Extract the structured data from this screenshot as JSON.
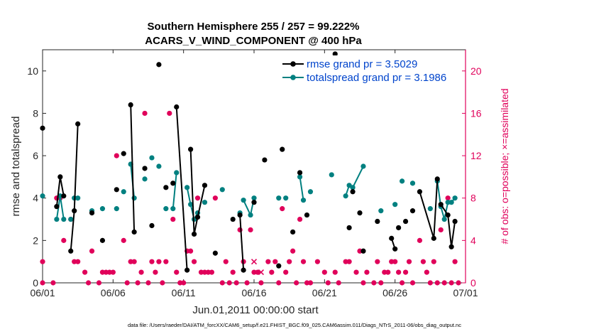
{
  "chart_data": {
    "type": "line",
    "title_line1": "Southern Hemisphere 255 / 257 = 99.222%",
    "title_line2": "ACARS_V_WIND_COMPONENT @ 400 hPa",
    "xlabel": "Jun.01,2011 00:00:00 start",
    "ylabel_left": "rmse and totalspread",
    "ylabel_right": "# of obs: o=possible; ×=assimilated",
    "footnote": "data file: /Users/raeder/DAI/ATM_forcXX/CAM6_setup/f.e21.FHIST_BGC.f09_025.CAM6assim.011/Diags_NTrS_2011-06/obs_diag_output.nc",
    "xlim": [
      0,
      30
    ],
    "ylim_left": [
      0,
      11
    ],
    "ylim_right": [
      0,
      22
    ],
    "x_tick_values": [
      0,
      5,
      10,
      15,
      20,
      25,
      30
    ],
    "x_tick_labels": [
      "06/01",
      "06/06",
      "06/11",
      "06/16",
      "06/21",
      "06/26",
      "07/01"
    ],
    "y_left_ticks": [
      0,
      2,
      4,
      6,
      8,
      10
    ],
    "y_right_ticks": [
      0,
      4,
      8,
      12,
      16,
      20
    ],
    "grid": false,
    "legend_position": "top-right",
    "colors": {
      "rmse": "#000000",
      "spread": "#008080",
      "obs": "#e0005a",
      "legend_text": "#0044cc",
      "right_axis": "#e0005a"
    },
    "series": [
      {
        "name": "rmse grand pr = 3.5029",
        "key": "rmse",
        "points": [
          [
            0,
            7.3
          ],
          [
            1,
            3.6
          ],
          [
            1.25,
            5.0
          ],
          [
            1.5,
            4.1
          ],
          [
            2,
            1.5
          ],
          [
            2.25,
            3.4
          ],
          [
            2.5,
            7.5
          ],
          [
            3.5,
            3.3
          ],
          [
            4.25,
            2.0
          ],
          [
            5.25,
            4.4
          ],
          [
            5.75,
            6.1
          ],
          [
            6.25,
            8.4
          ],
          [
            6.5,
            2.4
          ],
          [
            7.25,
            5.4
          ],
          [
            7.75,
            2.7
          ],
          [
            8.25,
            10.3
          ],
          [
            8.75,
            4.5
          ],
          [
            9.25,
            4.7
          ],
          [
            9.5,
            8.3
          ],
          [
            10.25,
            0.6
          ],
          [
            10.5,
            6.3
          ],
          [
            10.75,
            2.3
          ],
          [
            11,
            3.1
          ],
          [
            11.5,
            4.6
          ],
          [
            12.25,
            1.4
          ],
          [
            13.5,
            3.0
          ],
          [
            14,
            3.2
          ],
          [
            14.25,
            0.6
          ],
          [
            15,
            3.8
          ],
          [
            15.75,
            5.8
          ],
          [
            16.75,
            0.8
          ],
          [
            17,
            6.3
          ],
          [
            17.75,
            2.4
          ],
          [
            18.25,
            5.2
          ],
          [
            18.75,
            3.2
          ],
          [
            20.75,
            10.8
          ],
          [
            21.75,
            2.6
          ],
          [
            22,
            4.3
          ],
          [
            22.5,
            3.3
          ],
          [
            22.75,
            1.5
          ],
          [
            23.75,
            2.9
          ],
          [
            24.75,
            2.1
          ],
          [
            25,
            1.6
          ],
          [
            25.25,
            2.6
          ],
          [
            25.75,
            2.9
          ],
          [
            26.25,
            3.4
          ],
          [
            26.75,
            4.3
          ],
          [
            27.75,
            2.1
          ],
          [
            28,
            4.9
          ],
          [
            28.25,
            3.7
          ],
          [
            28.75,
            3.2
          ],
          [
            29,
            1.7
          ],
          [
            29.25,
            2.9
          ]
        ],
        "segments": [
          [
            1,
            2,
            3
          ],
          [
            4,
            5,
            6
          ],
          [
            11,
            12
          ],
          [
            18,
            19
          ],
          [
            20,
            21,
            22,
            23
          ],
          [
            26,
            27
          ],
          [
            41,
            42
          ],
          [
            46,
            47,
            48
          ],
          [
            49,
            50,
            51,
            52
          ]
        ]
      },
      {
        "name": "totalspread grand pr = 3.1986",
        "key": "spread",
        "points": [
          [
            0,
            4.1
          ],
          [
            1,
            3.0
          ],
          [
            1.25,
            4.1
          ],
          [
            1.5,
            3.0
          ],
          [
            2,
            3.0
          ],
          [
            2.25,
            4.0
          ],
          [
            2.5,
            4.0
          ],
          [
            3.5,
            3.4
          ],
          [
            4.25,
            3.5
          ],
          [
            5.25,
            3.5
          ],
          [
            5.75,
            4.3
          ],
          [
            6.25,
            5.6
          ],
          [
            6.5,
            4.0
          ],
          [
            7.25,
            4.9
          ],
          [
            7.75,
            5.9
          ],
          [
            8.25,
            5.5
          ],
          [
            8.75,
            3.5
          ],
          [
            9.25,
            3.5
          ],
          [
            9.5,
            5.2
          ],
          [
            10.25,
            4.5
          ],
          [
            10.5,
            3.7
          ],
          [
            10.75,
            3.0
          ],
          [
            11,
            3.3
          ],
          [
            11.5,
            3.8
          ],
          [
            12.75,
            4.4
          ],
          [
            14,
            3.3
          ],
          [
            14.25,
            3.9
          ],
          [
            14.75,
            3.2
          ],
          [
            15,
            4.0
          ],
          [
            16.75,
            4.0
          ],
          [
            17.25,
            4.0
          ],
          [
            18.25,
            5.0
          ],
          [
            18.5,
            3.9
          ],
          [
            19,
            4.3
          ],
          [
            20.5,
            5.1
          ],
          [
            21.5,
            4.1
          ],
          [
            21.75,
            4.6
          ],
          [
            22,
            4.5
          ],
          [
            22.75,
            5.5
          ],
          [
            24,
            3.4
          ],
          [
            25,
            3.7
          ],
          [
            25.5,
            4.8
          ],
          [
            26.25,
            4.7
          ],
          [
            27.5,
            3.5
          ],
          [
            28,
            4.8
          ],
          [
            28.25,
            3.6
          ],
          [
            28.5,
            3.0
          ],
          [
            28.75,
            3.8
          ],
          [
            29,
            3.8
          ],
          [
            29.25,
            4.0
          ]
        ],
        "segments": [
          [
            0,
            0
          ],
          [
            1,
            2,
            3
          ],
          [
            5,
            6
          ],
          [
            11,
            12
          ],
          [
            17,
            18
          ],
          [
            19,
            20,
            21,
            22
          ],
          [
            26,
            27,
            28
          ],
          [
            31,
            32
          ],
          [
            35,
            36,
            37
          ],
          [
            37,
            38
          ],
          [
            44,
            45,
            46
          ],
          [
            46,
            47,
            48,
            49
          ]
        ]
      },
      {
        "name": "obs",
        "key": "obs",
        "possible": [
          [
            0,
            2
          ],
          [
            0,
            0
          ],
          [
            0.75,
            0
          ],
          [
            1,
            8
          ],
          [
            1.25,
            8
          ],
          [
            1.5,
            4
          ],
          [
            2,
            6
          ],
          [
            2.25,
            2
          ],
          [
            2.5,
            2
          ],
          [
            3,
            1
          ],
          [
            3.25,
            0
          ],
          [
            3.5,
            3
          ],
          [
            4,
            0
          ],
          [
            4.25,
            1
          ],
          [
            4.5,
            1
          ],
          [
            4.75,
            1
          ],
          [
            5,
            1
          ],
          [
            5.25,
            12
          ],
          [
            5.75,
            4
          ],
          [
            6,
            0
          ],
          [
            6.25,
            2
          ],
          [
            6.5,
            2
          ],
          [
            6.75,
            0
          ],
          [
            7,
            1
          ],
          [
            7.25,
            16
          ],
          [
            7.5,
            0
          ],
          [
            7.75,
            2
          ],
          [
            8,
            1
          ],
          [
            8.25,
            2
          ],
          [
            8.5,
            0
          ],
          [
            8.75,
            2
          ],
          [
            9,
            16
          ],
          [
            9.25,
            6
          ],
          [
            9.5,
            1
          ],
          [
            9.75,
            0
          ],
          [
            10,
            0
          ],
          [
            10.25,
            3
          ],
          [
            10.5,
            3
          ],
          [
            10.75,
            2
          ],
          [
            11,
            8
          ],
          [
            11.25,
            1
          ],
          [
            11.5,
            1
          ],
          [
            11.75,
            1
          ],
          [
            12,
            1
          ],
          [
            12.25,
            8
          ],
          [
            12.75,
            0
          ],
          [
            13,
            2
          ],
          [
            13.25,
            0
          ],
          [
            13.5,
            1
          ],
          [
            13.75,
            0
          ],
          [
            14,
            5
          ],
          [
            14.25,
            2
          ],
          [
            14.5,
            0
          ],
          [
            14.75,
            5
          ],
          [
            15,
            1
          ],
          [
            15.25,
            1
          ],
          [
            15.5,
            0
          ],
          [
            16,
            2
          ],
          [
            16.25,
            1
          ],
          [
            16.5,
            2
          ],
          [
            16.75,
            0
          ],
          [
            17,
            7
          ],
          [
            17.25,
            1
          ],
          [
            17.5,
            2
          ],
          [
            17.75,
            3
          ],
          [
            18,
            0
          ],
          [
            18.25,
            6
          ],
          [
            18.5,
            2
          ],
          [
            18.75,
            0
          ],
          [
            19,
            0
          ],
          [
            19.5,
            2
          ],
          [
            20,
            1
          ],
          [
            20.25,
            0
          ],
          [
            20.75,
            1
          ],
          [
            21,
            0
          ],
          [
            21.5,
            2
          ],
          [
            21.75,
            2
          ],
          [
            22.25,
            1
          ],
          [
            22.5,
            3
          ],
          [
            22.75,
            0
          ],
          [
            23,
            1
          ],
          [
            23.5,
            0
          ],
          [
            23.75,
            2
          ],
          [
            24,
            0
          ],
          [
            24.25,
            1
          ],
          [
            24.5,
            1
          ],
          [
            24.75,
            2
          ],
          [
            25,
            2
          ],
          [
            25.25,
            1
          ],
          [
            25.5,
            0
          ],
          [
            25.75,
            1
          ],
          [
            26,
            2
          ],
          [
            26.25,
            0
          ],
          [
            26.75,
            4
          ],
          [
            27,
            2
          ],
          [
            27.25,
            1
          ],
          [
            27.5,
            0
          ],
          [
            27.75,
            2
          ],
          [
            28,
            0
          ],
          [
            28.25,
            5
          ],
          [
            28.5,
            0
          ],
          [
            28.75,
            8
          ],
          [
            29,
            0
          ],
          [
            29.25,
            2
          ],
          [
            29.5,
            0
          ]
        ],
        "assimilated": [
          [
            15,
            2
          ],
          [
            15.5,
            1
          ]
        ]
      }
    ]
  }
}
